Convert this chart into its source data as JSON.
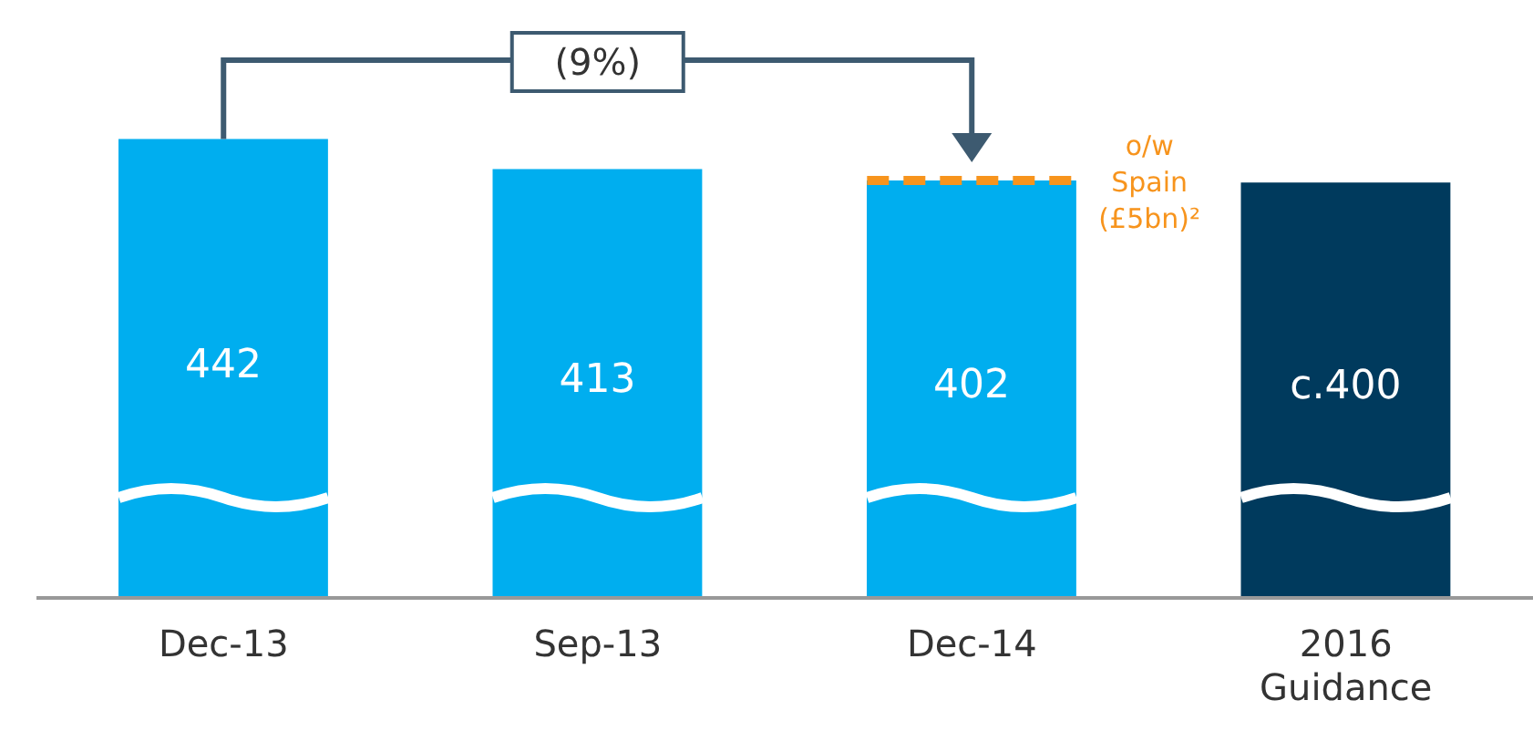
{
  "chart_data": {
    "type": "bar",
    "categories": [
      "Dec-13",
      "Sep-13",
      "Dec-14",
      "2016 Guidance"
    ],
    "values": [
      442,
      413,
      402,
      400
    ],
    "colors": [
      "#00aeef",
      "#00aeef",
      "#00aeef",
      "#003a5d"
    ],
    "value_labels": [
      "442",
      "413",
      "402",
      "c.400"
    ],
    "tick_labels": "x",
    "grid": false,
    "legend": false,
    "annotations": [
      "(9%)",
      "o/w Spain (£5bn)²"
    ]
  }
}
